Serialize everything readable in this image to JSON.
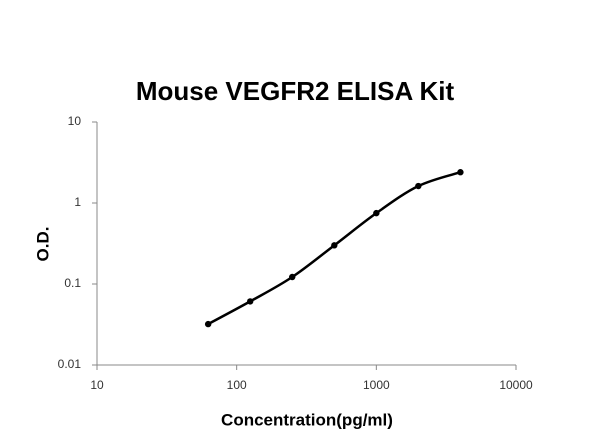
{
  "chart_data": {
    "type": "line",
    "title": "Mouse VEGFR2 ELISA Kit",
    "x_label": "Concentration(pg/ml)",
    "y_label": "O.D.",
    "x": [
      62.5,
      125,
      250,
      500,
      1000,
      2000,
      4000
    ],
    "series": [
      {
        "color": "#000000",
        "values": [
          0.032,
          0.061,
          0.122,
          0.3,
          0.75,
          1.62,
          2.4
        ]
      }
    ],
    "xlim": [
      10,
      10000
    ],
    "xticks": [
      10,
      100,
      1000,
      10000
    ],
    "ylim": [
      0.01,
      10
    ],
    "yticks": [
      0.01,
      0.1,
      1,
      10
    ],
    "xlog": true,
    "ylog": true,
    "grid": false
  }
}
